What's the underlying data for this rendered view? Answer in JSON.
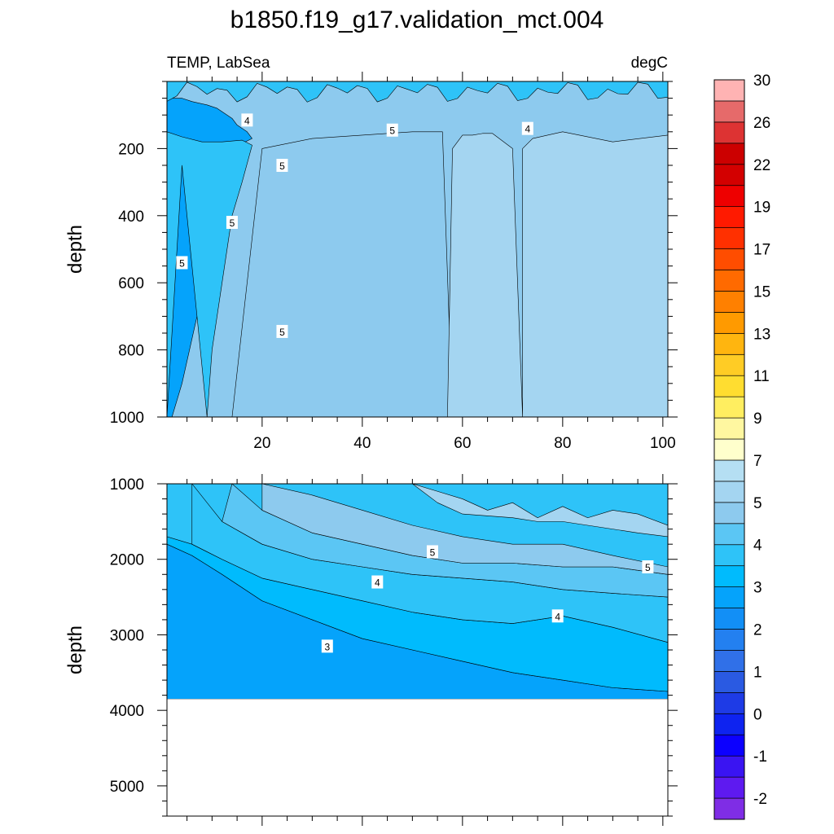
{
  "figure": {
    "title": "b1850.f19_g17.validation_mct.004",
    "variable_label": "TEMP, LabSea",
    "units_label": "degC"
  },
  "colorbar": {
    "colors": [
      "#7f2de5",
      "#5e1af0",
      "#3a14f2",
      "#0c00ff",
      "#0e23f0",
      "#1e3be6",
      "#2a5ae2",
      "#3070e8",
      "#2380f0",
      "#128ff6",
      "#05a3fb",
      "#00bbfd",
      "#2ec3f8",
      "#5bc6f4",
      "#8dcaee",
      "#a4d5f1",
      "#b5dff3",
      "#ffffcc",
      "#fff7a0",
      "#ffee60",
      "#ffdd30",
      "#ffcc25",
      "#ffb50f",
      "#ff9a00",
      "#ff8000",
      "#ff6a00",
      "#ff4d00",
      "#ff3000",
      "#ff1a00",
      "#ee0000",
      "#d30000",
      "#cc0000",
      "#dd3333",
      "#e66a6a",
      "#ffb3b3"
    ],
    "labels": [
      "-2",
      "-1",
      "0",
      "1",
      "2",
      "3",
      "4",
      "5",
      "7",
      "9",
      "11",
      "13",
      "15",
      "17",
      "19",
      "22",
      "26",
      "30"
    ]
  },
  "chart_data": [
    {
      "type": "contour",
      "panel": "top",
      "xlabel": "",
      "ylabel": "depth",
      "xlim": [
        1,
        101
      ],
      "ylim": [
        1000,
        0
      ],
      "xticks": [
        "20",
        "40",
        "60",
        "80",
        "100"
      ],
      "yticks": [
        "200",
        "400",
        "600",
        "800",
        "1000"
      ],
      "contour_labels": [
        "4",
        "5",
        "5",
        "5",
        "5",
        "4",
        "5"
      ],
      "regions": [
        {
          "level": "4",
          "color": "#05a3fb",
          "x": [
            1,
            1,
            4,
            6,
            9,
            11,
            14,
            15,
            16,
            17,
            18,
            14,
            12,
            10,
            7,
            4,
            2,
            1
          ],
          "y": [
            1000,
            50,
            50,
            60,
            70,
            80,
            110,
            130,
            140,
            150,
            170,
            200,
            300,
            500,
            700,
            900,
            1000,
            1000
          ]
        },
        {
          "level": "4.5",
          "color": "#2ec3f8",
          "x": [
            1,
            1,
            4,
            8,
            12,
            16,
            18,
            16,
            14,
            12,
            10,
            9,
            7,
            5,
            4,
            1
          ],
          "y": [
            1000,
            150,
            165,
            180,
            180,
            175,
            190,
            300,
            400,
            600,
            800,
            1000,
            700,
            400,
            250,
            1000
          ]
        },
        {
          "level": "5",
          "color": "#5bc6f4",
          "x": [
            20,
            22,
            24,
            26,
            26,
            24,
            22,
            20
          ],
          "y": [
            1000,
            800,
            700,
            800,
            1000,
            1000,
            1000,
            1000
          ]
        },
        {
          "level": "5.5",
          "color": "#8dcaee",
          "x": [
            14,
            20,
            30,
            40,
            50,
            56,
            58,
            56,
            40,
            30,
            20,
            16,
            14
          ],
          "y": [
            1000,
            200,
            170,
            160,
            150,
            150,
            1000,
            1000,
            1000,
            1000,
            1000,
            1000,
            1000
          ]
        },
        {
          "level": "6",
          "color": "#a4d5f1",
          "x": [
            57,
            58,
            60,
            62,
            64,
            66,
            70,
            72,
            72,
            74,
            80,
            90,
            101,
            101,
            57
          ],
          "y": [
            1000,
            200,
            160,
            160,
            155,
            155,
            200,
            1000,
            200,
            170,
            150,
            180,
            160,
            1000,
            1000
          ]
        }
      ]
    },
    {
      "type": "contour",
      "panel": "bottom",
      "xlabel": "",
      "ylabel": "depth",
      "xlim": [
        1,
        101
      ],
      "ylim": [
        5400,
        1000
      ],
      "xticks": [
        "",
        "",
        "",
        "",
        ""
      ],
      "yticks": [
        "1000",
        "2000",
        "3000",
        "4000",
        "5000"
      ],
      "bottom_depth": 3850,
      "contour_labels": [
        "5",
        "4",
        "3",
        "4",
        "5"
      ],
      "regions": [
        {
          "level": "2",
          "color": "#2a80f0",
          "x": [
            1,
            1,
            4,
            7,
            9,
            10,
            1
          ],
          "y": [
            3850,
            3200,
            3050,
            3200,
            3500,
            3850,
            3850
          ]
        },
        {
          "level": "2.5",
          "color": "#1a8ff6",
          "x": [
            1,
            1,
            4,
            8,
            14,
            20,
            26,
            27,
            1
          ],
          "y": [
            3850,
            2500,
            2400,
            2450,
            2750,
            3200,
            3700,
            3850,
            3850
          ]
        },
        {
          "level": "3",
          "color": "#05a3fb",
          "x": [
            1,
            1,
            6,
            12,
            20,
            30,
            40,
            50,
            60,
            70,
            80,
            90,
            101,
            101,
            1
          ],
          "y": [
            3850,
            1800,
            1950,
            2200,
            2550,
            2800,
            3050,
            3200,
            3350,
            3500,
            3600,
            3700,
            3750,
            3850,
            3850
          ]
        },
        {
          "level": "3.5",
          "color": "#00bbfd",
          "x": [
            1,
            6,
            12,
            20,
            30,
            40,
            50,
            60,
            70,
            80,
            90,
            101,
            101,
            90,
            80,
            70,
            60,
            50,
            40,
            30,
            20,
            12,
            6,
            1
          ],
          "y": [
            1700,
            1800,
            2000,
            2250,
            2400,
            2550,
            2700,
            2800,
            2850,
            2750,
            2900,
            3100,
            3750,
            3700,
            3600,
            3500,
            3350,
            3200,
            3050,
            2800,
            2550,
            2200,
            1950,
            1800
          ]
        },
        {
          "level": "4",
          "color": "#2ec3f8",
          "x": [
            6,
            12,
            20,
            30,
            40,
            50,
            60,
            70,
            80,
            90,
            101,
            101,
            90,
            80,
            70,
            60,
            50,
            40,
            30,
            20,
            12,
            6
          ],
          "y": [
            1000,
            1500,
            1800,
            2000,
            2100,
            2200,
            2250,
            2300,
            2400,
            2450,
            2500,
            3100,
            2900,
            2750,
            2850,
            2800,
            2700,
            2550,
            2400,
            2250,
            2000,
            1800
          ]
        },
        {
          "level": "4.5",
          "color": "#5bc6f4",
          "x": [
            14,
            20,
            30,
            40,
            50,
            60,
            70,
            80,
            90,
            101,
            101,
            90,
            80,
            70,
            60,
            50,
            40,
            30,
            20,
            12
          ],
          "y": [
            1000,
            1350,
            1650,
            1800,
            1950,
            2050,
            2050,
            2100,
            2100,
            2200,
            2500,
            2450,
            2400,
            2300,
            2250,
            2200,
            2100,
            2000,
            1800,
            1500
          ]
        },
        {
          "level": "5",
          "color": "#8dcaee",
          "x": [
            20,
            30,
            40,
            50,
            60,
            70,
            80,
            90,
            101,
            101,
            90,
            80,
            70,
            60,
            50,
            40,
            30,
            20
          ],
          "y": [
            1000,
            1150,
            1350,
            1550,
            1700,
            1800,
            1800,
            1950,
            2100,
            2200,
            2100,
            2100,
            2050,
            2050,
            1950,
            1800,
            1650,
            1350
          ]
        },
        {
          "level": "5.5",
          "color": "#a4d5f1",
          "x": [
            50,
            55,
            60,
            65,
            70,
            75,
            80,
            85,
            90,
            95,
            101,
            101,
            95,
            90,
            85,
            80,
            75,
            70,
            60,
            55,
            50
          ],
          "y": [
            1000,
            1100,
            1200,
            1350,
            1250,
            1450,
            1300,
            1450,
            1350,
            1400,
            1550,
            1700,
            1650,
            1600,
            1550,
            1500,
            1500,
            1450,
            1400,
            1250,
            1000
          ]
        }
      ]
    }
  ]
}
